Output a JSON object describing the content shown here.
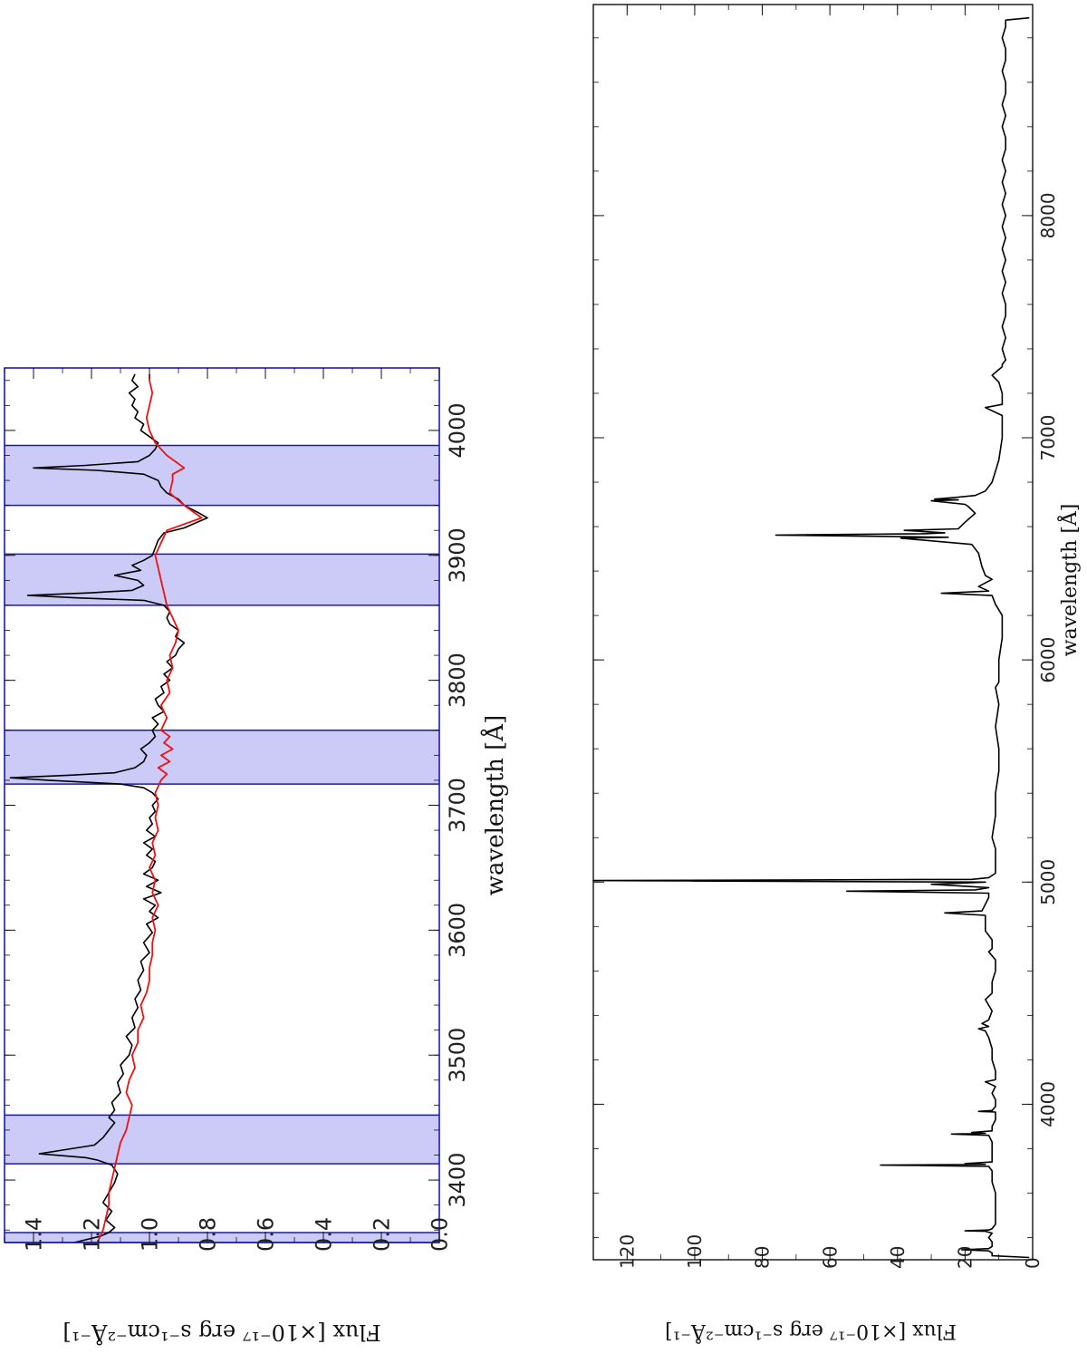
{
  "chart_data": [
    {
      "type": "line",
      "panel": "top",
      "orientation": "rotated 90° clockwise (wavelength runs bottom-to-top)",
      "xlabel": "wavelength [Å]",
      "ylabel": "Flux [×10⁻¹⁷ erg s⁻¹cm⁻²Å⁻¹]",
      "xlim": [
        3350,
        4050
      ],
      "ylim": [
        0.0,
        1.5
      ],
      "x_ticks": [
        "3400",
        "3500",
        "3600",
        "3700",
        "3800",
        "3900",
        "4000"
      ],
      "y_ticks": [
        "0.0",
        "0.2",
        "0.4",
        "0.6",
        "0.8",
        "1.0",
        "1.2",
        "1.4"
      ],
      "shaded_regions": [
        [
          3350,
          3358
        ],
        [
          3413,
          3452
        ],
        [
          3717,
          3760
        ],
        [
          3860,
          3901
        ],
        [
          3940,
          3988
        ]
      ],
      "shade_color": "#cccbf7",
      "shade_edge_color": "#1a1ab0",
      "series": [
        {
          "color": "#000000",
          "x": [
            3350,
            3355,
            3358,
            3362,
            3368,
            3375,
            3382,
            3390,
            3398,
            3405,
            3412,
            3416,
            3418,
            3421,
            3424,
            3428,
            3434,
            3440,
            3446,
            3450,
            3456,
            3462,
            3470,
            3478,
            3485,
            3492,
            3500,
            3508,
            3515,
            3522,
            3530,
            3538,
            3545,
            3552,
            3560,
            3568,
            3575,
            3582,
            3590,
            3598,
            3605,
            3610,
            3615,
            3620,
            3625,
            3630,
            3635,
            3640,
            3645,
            3650,
            3655,
            3660,
            3665,
            3670,
            3675,
            3680,
            3685,
            3690,
            3695,
            3700,
            3705,
            3710,
            3714,
            3717,
            3720,
            3722,
            3724,
            3726,
            3730,
            3735,
            3740,
            3745,
            3750,
            3755,
            3760,
            3765,
            3770,
            3775,
            3780,
            3785,
            3790,
            3795,
            3800,
            3805,
            3810,
            3815,
            3820,
            3825,
            3830,
            3835,
            3840,
            3845,
            3850,
            3855,
            3860,
            3864,
            3866,
            3868,
            3870,
            3872,
            3876,
            3880,
            3884,
            3888,
            3892,
            3896,
            3900,
            3906,
            3912,
            3918,
            3922,
            3926,
            3930,
            3934,
            3940,
            3945,
            3950,
            3955,
            3960,
            3965,
            3968,
            3970,
            3972,
            3975,
            3980,
            3985,
            3990,
            3995,
            4000,
            4005,
            4010,
            4015,
            4020,
            4025,
            4030,
            4035,
            4040,
            4045
          ],
          "y": [
            1.26,
            1.17,
            1.14,
            1.12,
            1.15,
            1.13,
            1.16,
            1.14,
            1.12,
            1.11,
            1.13,
            1.18,
            1.22,
            1.38,
            1.3,
            1.19,
            1.16,
            1.14,
            1.12,
            1.14,
            1.12,
            1.13,
            1.1,
            1.11,
            1.09,
            1.1,
            1.07,
            1.06,
            1.08,
            1.05,
            1.06,
            1.04,
            1.05,
            1.03,
            1.04,
            1.02,
            1.03,
            1.0,
            1.02,
            0.99,
            1.01,
            0.97,
            1.0,
            0.98,
            1.02,
            0.96,
            1.01,
            0.97,
            1.02,
            0.99,
            0.98,
            1.01,
            0.99,
            1.02,
            0.98,
            1.01,
            0.99,
            1.0,
            0.98,
            0.99,
            0.97,
            0.99,
            1.02,
            1.1,
            1.35,
            1.48,
            1.28,
            1.12,
            1.05,
            1.02,
            1.01,
            1.03,
            1.0,
            0.98,
            0.99,
            0.97,
            0.99,
            0.95,
            0.97,
            0.98,
            0.95,
            0.96,
            0.93,
            0.95,
            0.92,
            0.94,
            0.91,
            0.9,
            0.88,
            0.91,
            0.9,
            0.93,
            0.94,
            0.93,
            0.95,
            1.02,
            1.25,
            1.42,
            1.2,
            1.06,
            1.02,
            1.04,
            1.12,
            1.03,
            1.06,
            1.02,
            0.99,
            0.98,
            0.97,
            0.95,
            0.88,
            0.84,
            0.8,
            0.83,
            0.88,
            0.9,
            0.94,
            0.96,
            0.97,
            1.02,
            1.18,
            1.4,
            1.22,
            1.04,
            1.0,
            0.98,
            0.97,
            1.0,
            1.03,
            1.02,
            1.05,
            1.04,
            1.06,
            1.05,
            1.07,
            1.04,
            1.06,
            1.05
          ]
        },
        {
          "color": "#ee1111",
          "x": [
            3350,
            3360,
            3370,
            3380,
            3390,
            3400,
            3410,
            3420,
            3430,
            3440,
            3450,
            3460,
            3470,
            3480,
            3490,
            3500,
            3510,
            3520,
            3530,
            3540,
            3550,
            3560,
            3570,
            3580,
            3590,
            3600,
            3610,
            3620,
            3630,
            3640,
            3650,
            3660,
            3670,
            3680,
            3690,
            3700,
            3710,
            3720,
            3725,
            3730,
            3735,
            3740,
            3745,
            3750,
            3755,
            3760,
            3770,
            3780,
            3790,
            3800,
            3810,
            3820,
            3830,
            3840,
            3850,
            3860,
            3870,
            3880,
            3890,
            3900,
            3910,
            3920,
            3930,
            3940,
            3950,
            3960,
            3965,
            3970,
            3980,
            3990,
            4000,
            4010,
            4020,
            4030,
            4040,
            4045
          ],
          "y": [
            1.18,
            1.16,
            1.15,
            1.14,
            1.14,
            1.13,
            1.12,
            1.11,
            1.1,
            1.08,
            1.07,
            1.06,
            1.08,
            1.07,
            1.05,
            1.06,
            1.04,
            1.04,
            1.02,
            1.03,
            1.01,
            1.0,
            1.0,
            0.99,
            0.99,
            0.98,
            0.99,
            0.97,
            0.99,
            0.98,
            1.0,
            0.98,
            0.99,
            0.97,
            0.98,
            0.97,
            0.98,
            0.96,
            0.94,
            0.97,
            0.93,
            0.96,
            0.92,
            0.95,
            0.93,
            0.96,
            0.94,
            0.96,
            0.93,
            0.94,
            0.92,
            0.93,
            0.91,
            0.9,
            0.92,
            0.94,
            0.95,
            0.96,
            0.97,
            0.98,
            0.96,
            0.94,
            0.82,
            0.88,
            0.93,
            0.92,
            0.92,
            0.88,
            0.94,
            0.98,
            1.0,
            1.01,
            1.0,
            0.99,
            1.0,
            1.0
          ]
        }
      ]
    },
    {
      "type": "line",
      "panel": "bottom",
      "orientation": "rotated 90° clockwise (wavelength runs bottom-to-top)",
      "xlabel": "wavelength [Å]",
      "ylabel": "Flux [×10⁻¹⁷ erg s⁻¹cm⁻²Å⁻¹]",
      "xlim": [
        3300,
        8950
      ],
      "ylim": [
        0,
        130
      ],
      "x_ticks": [
        "4000",
        "5000",
        "6000",
        "7000",
        "8000"
      ],
      "y_ticks": [
        "0",
        "20",
        "40",
        "60",
        "80",
        "100",
        "120"
      ],
      "series": [
        {
          "color": "#000000",
          "x": [
            3310,
            3318,
            3330,
            3340,
            3345,
            3350,
            3360,
            3380,
            3400,
            3420,
            3428,
            3430,
            3434,
            3440,
            3460,
            3500,
            3540,
            3600,
            3650,
            3700,
            3720,
            3726,
            3729,
            3733,
            3740,
            3760,
            3800,
            3830,
            3860,
            3866,
            3869,
            3873,
            3880,
            3900,
            3930,
            3965,
            3968,
            3972,
            3990,
            4020,
            4050,
            4080,
            4101,
            4110,
            4150,
            4200,
            4250,
            4300,
            4330,
            4340,
            4350,
            4363,
            4380,
            4420,
            4471,
            4500,
            4550,
            4600,
            4650,
            4686,
            4700,
            4740,
            4780,
            4850,
            4861,
            4870,
            4900,
            4930,
            4950,
            4959,
            4965,
            4975,
            4990,
            5000,
            5007,
            5012,
            5020,
            5040,
            5080,
            5150,
            5200,
            5300,
            5400,
            5500,
            5600,
            5700,
            5800,
            5876,
            5900,
            6000,
            6100,
            6200,
            6250,
            6290,
            6300,
            6310,
            6330,
            6363,
            6380,
            6420,
            6480,
            6520,
            6548,
            6552,
            6556,
            6562,
            6568,
            6572,
            6583,
            6590,
            6620,
            6660,
            6690,
            6700,
            6716,
            6720,
            6724,
            6731,
            6740,
            6760,
            6800,
            6850,
            6900,
            7000,
            7065,
            7100,
            7136,
            7150,
            7200,
            7250,
            7281,
            7320,
            7330,
            7350,
            7400,
            7450,
            7500,
            7550,
            7600,
            7650,
            7700,
            7750,
            7800,
            7850,
            7900,
            7950,
            8000,
            8050,
            8100,
            8150,
            8200,
            8250,
            8300,
            8350,
            8400,
            8450,
            8500,
            8550,
            8600,
            8650,
            8700,
            8750,
            8800,
            8850,
            8880,
            8890
          ],
          "y": [
            1,
            12,
            12,
            13,
            21,
            13,
            12,
            12,
            13,
            12,
            14,
            20,
            13,
            12,
            11,
            11,
            11,
            11,
            12,
            12,
            13,
            45,
            14,
            20,
            12,
            12,
            12,
            12,
            13,
            24,
            14,
            18,
            12,
            12,
            11,
            11,
            16,
            12,
            11,
            11,
            12,
            11,
            14,
            11,
            11,
            12,
            12,
            13,
            14,
            16,
            13,
            15,
            13,
            12,
            14,
            12,
            12,
            11,
            11,
            13,
            12,
            12,
            14,
            14,
            26,
            15,
            14,
            13,
            13,
            55,
            17,
            13,
            30,
            14,
            130,
            18,
            13,
            11,
            11,
            11,
            12,
            11,
            11,
            10,
            10,
            11,
            10,
            11,
            10,
            10,
            9,
            9,
            11,
            12,
            27,
            13,
            16,
            12,
            14,
            15,
            16,
            18,
            39,
            25,
            45,
            76,
            32,
            26,
            38,
            22,
            20,
            17,
            19,
            20,
            30,
            22,
            29,
            23,
            17,
            14,
            12,
            11,
            10,
            9,
            9,
            9,
            14,
            9,
            9,
            10,
            12,
            9,
            9,
            8,
            9,
            8,
            9,
            8,
            8,
            9,
            8,
            9,
            8,
            9,
            8,
            9,
            8,
            9,
            8,
            9,
            8,
            9,
            8,
            8,
            9,
            8,
            9,
            8,
            8,
            9,
            8,
            8,
            9,
            8,
            8,
            1
          ]
        }
      ]
    }
  ]
}
